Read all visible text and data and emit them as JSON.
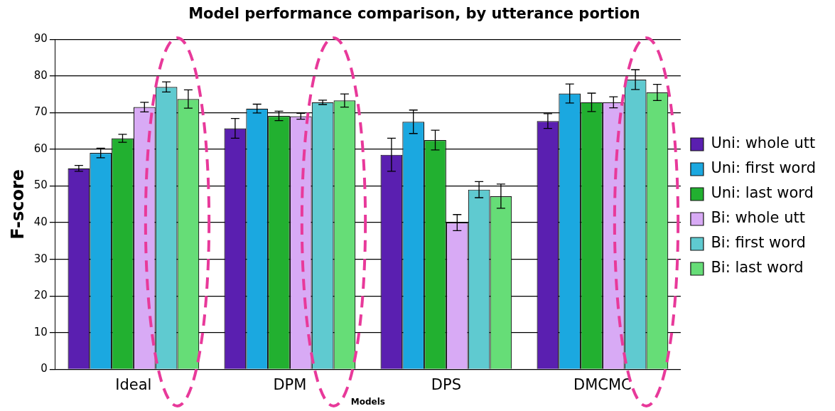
{
  "chart_data": {
    "type": "bar",
    "title": "Model performance comparison, by utterance portion",
    "xlabel": "Models",
    "ylabel": "F-score",
    "categories": [
      "Ideal",
      "DPM",
      "DPS",
      "DMCMC"
    ],
    "ylim": [
      0,
      90
    ],
    "yticks": [
      0,
      10,
      20,
      30,
      40,
      50,
      60,
      70,
      80,
      90
    ],
    "grid": "y",
    "legend": "right",
    "series": [
      {
        "name": "Uni: whole utt",
        "color": "#5a1fb0",
        "values": [
          54.8,
          65.7,
          58.5,
          67.7
        ],
        "errors": [
          0.8,
          2.7,
          4.5,
          2
        ]
      },
      {
        "name": "Uni: first word",
        "color": "#1ba8e0",
        "values": [
          59,
          71.1,
          67.5,
          75.2
        ],
        "errors": [
          1.3,
          1.2,
          3.2,
          2.6
        ]
      },
      {
        "name": "Uni: last word",
        "color": "#22b030",
        "values": [
          63,
          69.1,
          62.5,
          72.8
        ],
        "errors": [
          1.1,
          1.3,
          2.7,
          2.5
        ]
      },
      {
        "name": "Bi: whole utt",
        "color": "#d8aaf5",
        "values": [
          71.5,
          69,
          40,
          72.8
        ],
        "errors": [
          1.3,
          0.8,
          2.2,
          1.5
        ]
      },
      {
        "name": "Bi: first word",
        "color": "#5fcad0",
        "values": [
          77,
          72.8,
          49,
          79
        ],
        "errors": [
          1.4,
          0.6,
          2.2,
          2.7
        ]
      },
      {
        "name": "Bi: last word",
        "color": "#66dd77",
        "values": [
          73.7,
          73.3,
          47.2,
          75.5
        ],
        "errors": [
          2.5,
          1.8,
          3.3,
          2.2
        ]
      }
    ]
  }
}
